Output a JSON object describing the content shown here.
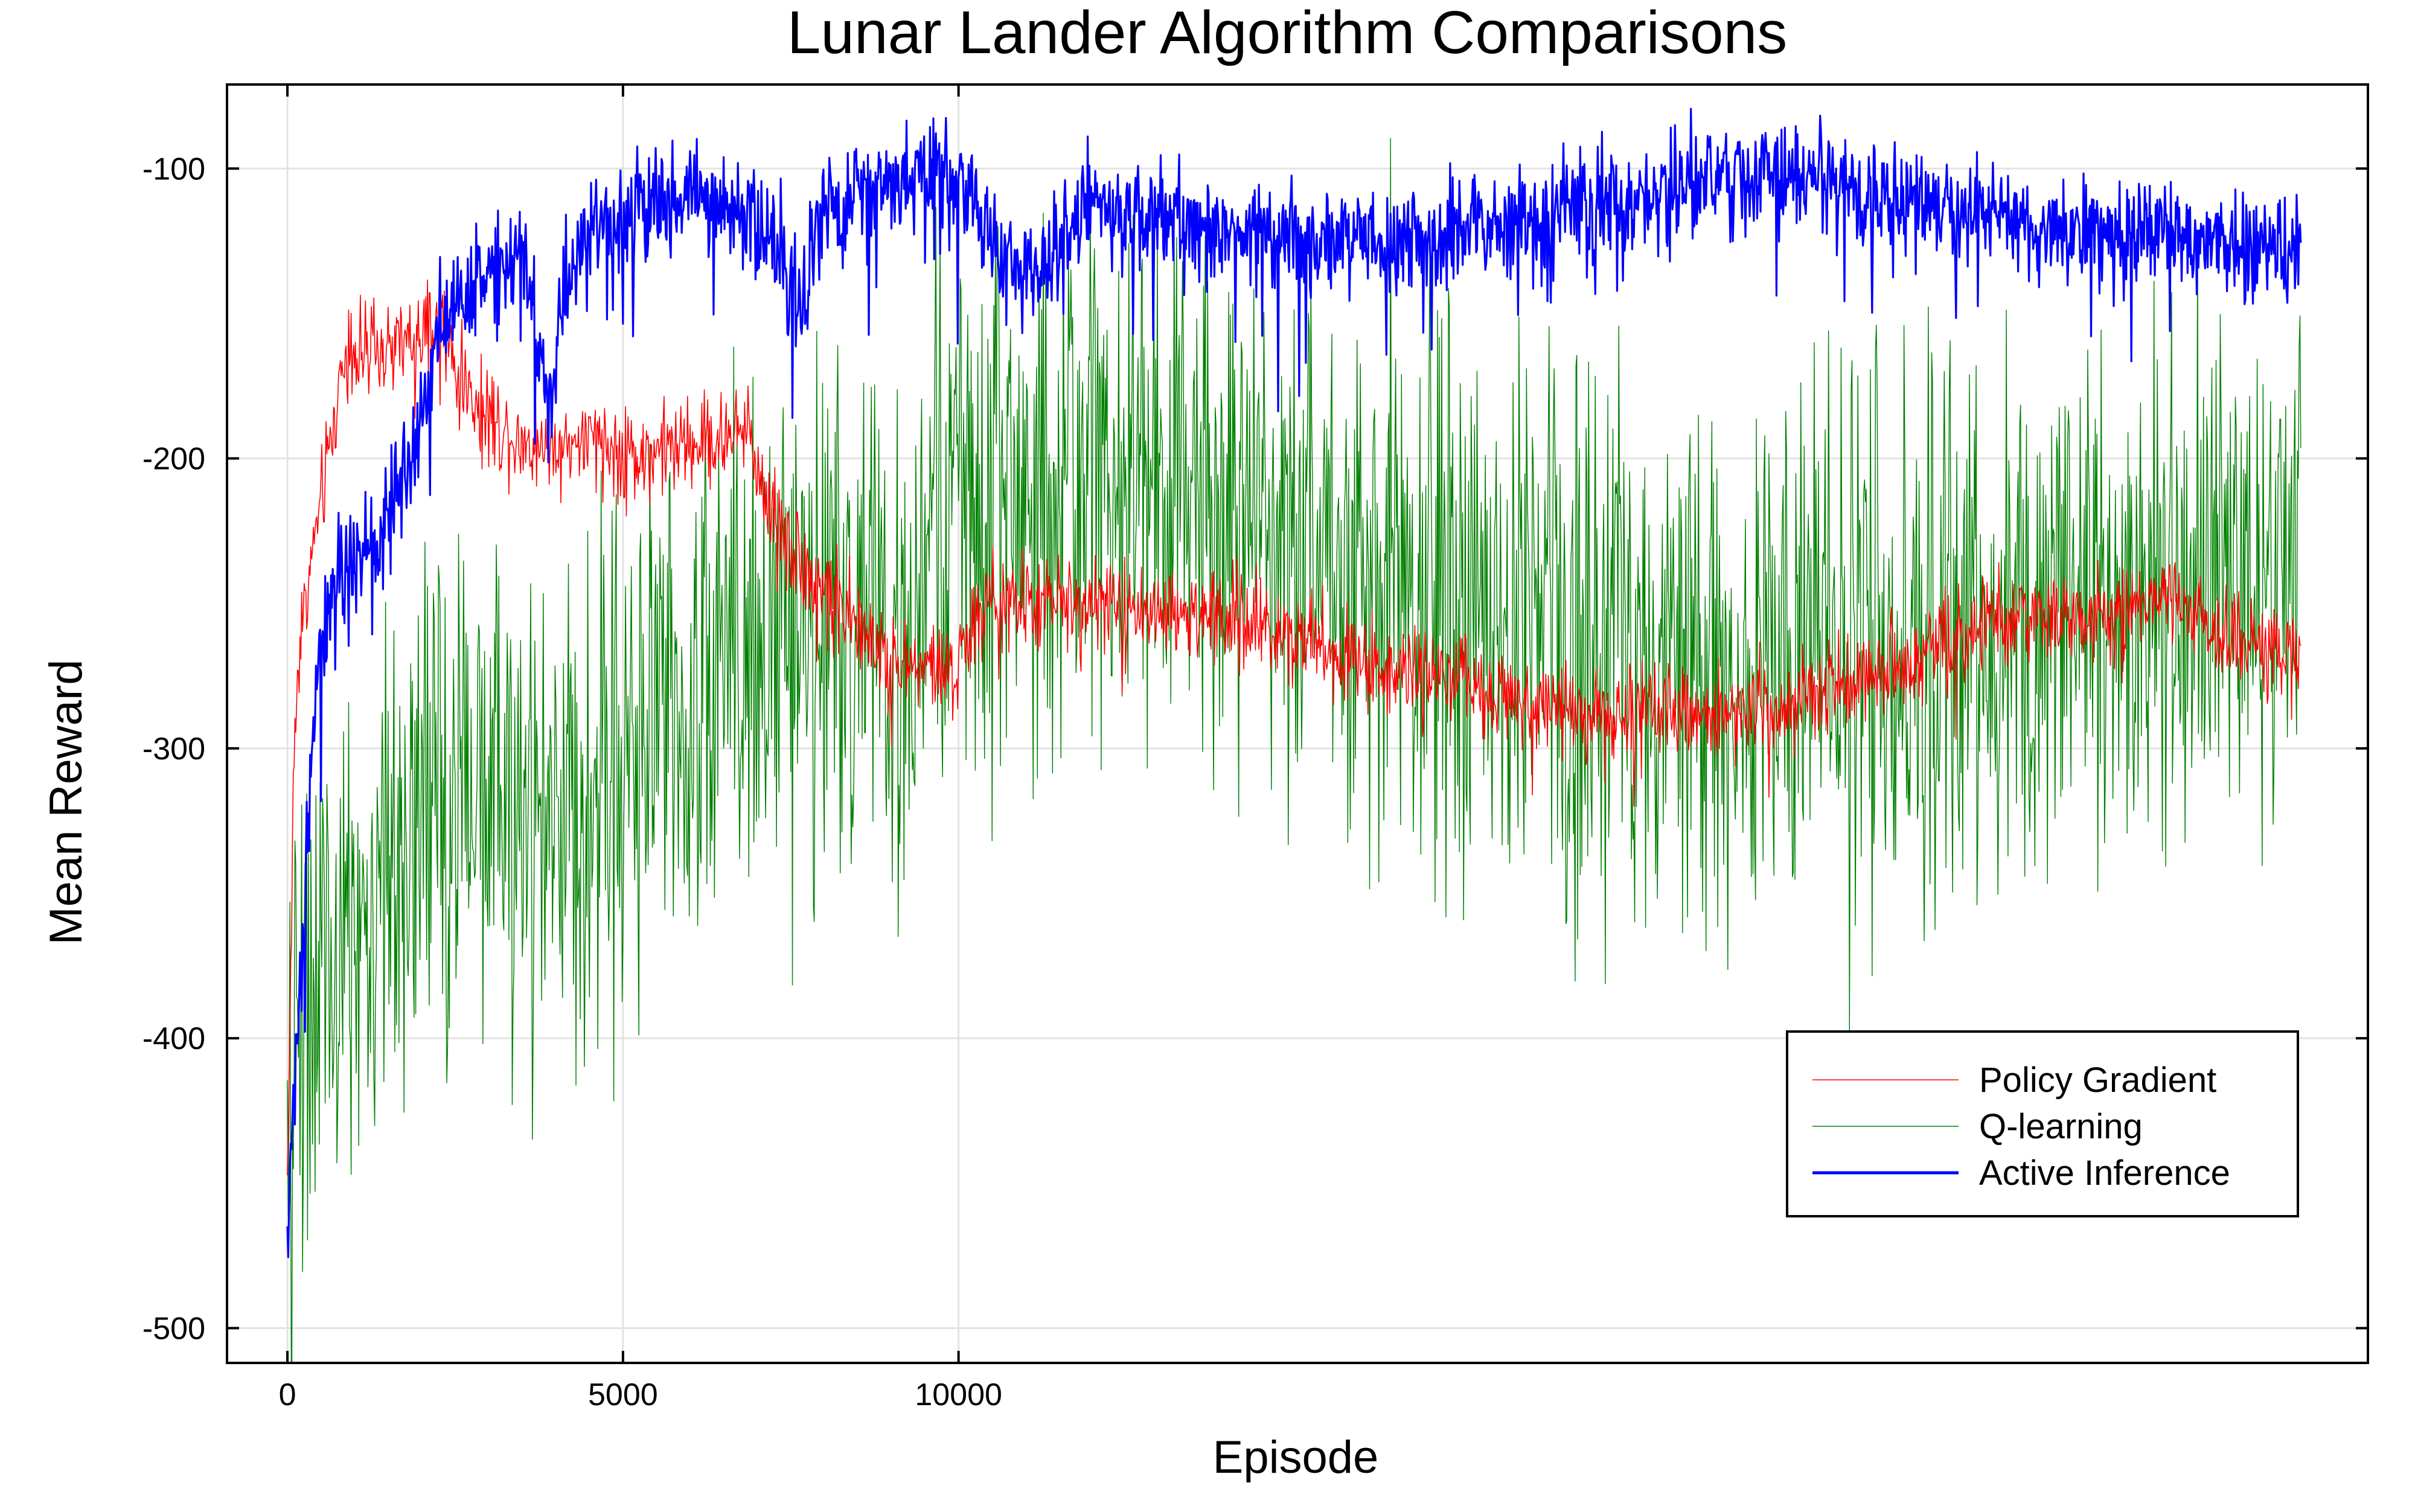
{
  "chart_data": {
    "type": "line",
    "title": "Lunar Lander Algorithm Comparisons",
    "xlabel": "Episode",
    "ylabel": "Mean Reward",
    "xlim": [
      -900,
      31000
    ],
    "ylim": [
      -512,
      -71
    ],
    "xticks": [
      0,
      5000,
      10000
    ],
    "xtick_labels": [
      "0",
      "5000",
      "10000"
    ],
    "yticks": [
      -500,
      -400,
      -300,
      -200,
      -100
    ],
    "ytick_labels": [
      "-500",
      "-400",
      "-300",
      "-200",
      "-100"
    ],
    "grid": true,
    "legend_position": "bottom-right",
    "x_max_episode": 30000,
    "series": [
      {
        "name": "Policy Gradient",
        "color": "#ff0000",
        "noise": 8,
        "x": [
          0,
          100,
          200,
          300,
          400,
          500,
          600,
          700,
          800,
          900,
          1000,
          1200,
          1500,
          1800,
          2000,
          2200,
          2300,
          2500,
          2800,
          3000,
          3200,
          3400,
          3600,
          4000,
          4500,
          5000,
          5500,
          6000,
          6500,
          6900,
          7000,
          7200,
          7400,
          7600,
          7800,
          8000,
          8300,
          8500,
          8800,
          9000,
          9300,
          9600,
          10000,
          10100,
          10500,
          11000,
          12000,
          13000,
          14000,
          15000,
          15500,
          16000,
          17000,
          18000,
          19000,
          20000,
          21000,
          22000,
          23000,
          24000,
          25000,
          26000,
          27000,
          28000,
          28500,
          29000,
          29500,
          30000
        ],
        "values": [
          -450,
          -300,
          -255,
          -245,
          -228,
          -215,
          -200,
          -188,
          -170,
          -160,
          -162,
          -165,
          -163,
          -160,
          -160,
          -155,
          -152,
          -170,
          -180,
          -185,
          -190,
          -192,
          -195,
          -195,
          -195,
          -198,
          -198,
          -195,
          -193,
          -190,
          -205,
          -215,
          -225,
          -235,
          -240,
          -245,
          -250,
          -260,
          -265,
          -270,
          -272,
          -272,
          -275,
          -260,
          -250,
          -250,
          -250,
          -252,
          -255,
          -260,
          -265,
          -270,
          -275,
          -280,
          -285,
          -290,
          -288,
          -285,
          -280,
          -270,
          -260,
          -255,
          -255,
          -250,
          -255,
          -260,
          -265,
          -270
        ]
      },
      {
        "name": "Q-learning",
        "color": "#008000",
        "noise": 45,
        "x": [
          0,
          100,
          300,
          600,
          900,
          1200,
          1500,
          2000,
          2500,
          3000,
          3500,
          4000,
          4500,
          5000,
          5500,
          6000,
          6500,
          7000,
          7500,
          8000,
          8500,
          9000,
          9300,
          9500,
          9700,
          10000,
          10500,
          11000,
          12000,
          13000,
          14000,
          15000,
          16000,
          17000,
          18000,
          19000,
          20000,
          21000,
          22000,
          23000,
          24000,
          25000,
          26000,
          27000,
          28000,
          29000,
          30000
        ],
        "values": [
          -480,
          -400,
          -380,
          -390,
          -370,
          -360,
          -350,
          -330,
          -320,
          -310,
          -315,
          -320,
          -310,
          -300,
          -290,
          -280,
          -270,
          -262,
          -255,
          -250,
          -258,
          -265,
          -275,
          -245,
          -222,
          -210,
          -215,
          -215,
          -210,
          -212,
          -215,
          -225,
          -235,
          -245,
          -255,
          -262,
          -268,
          -272,
          -270,
          -265,
          -262,
          -258,
          -255,
          -250,
          -245,
          -240,
          -230
        ]
      },
      {
        "name": "Active Inference",
        "color": "#0000ff",
        "noise": 9,
        "x": [
          0,
          100,
          200,
          300,
          400,
          600,
          800,
          1000,
          1300,
          1600,
          2000,
          2300,
          2500,
          3000,
          3500,
          3700,
          3900,
          4100,
          4500,
          5000,
          5500,
          6000,
          6500,
          7000,
          7400,
          7600,
          8000,
          8500,
          9000,
          9500,
          10000,
          10500,
          11000,
          12000,
          13000,
          14000,
          15000,
          16000,
          17000,
          18000,
          19000,
          20000,
          21000,
          22000,
          23000,
          24000,
          25000,
          26000,
          27000,
          28000,
          29000,
          30000
        ],
        "values": [
          -470,
          -420,
          -380,
          -330,
          -280,
          -250,
          -240,
          -235,
          -230,
          -215,
          -185,
          -150,
          -145,
          -135,
          -125,
          -150,
          -185,
          -140,
          -120,
          -115,
          -112,
          -108,
          -112,
          -118,
          -128,
          -150,
          -115,
          -108,
          -105,
          -102,
          -100,
          -125,
          -140,
          -112,
          -118,
          -122,
          -125,
          -126,
          -124,
          -120,
          -115,
          -110,
          -105,
          -103,
          -105,
          -110,
          -115,
          -118,
          -120,
          -123,
          -125,
          -126
        ]
      }
    ]
  }
}
